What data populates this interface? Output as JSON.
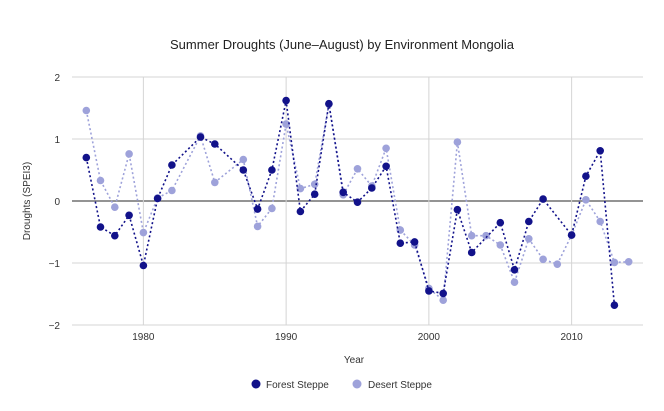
{
  "chart_data": {
    "type": "line",
    "title": "Summer Droughts (June–August) by Environment Mongolia",
    "xlabel": "Year",
    "ylabel": "Droughts (SPEI3)",
    "xlim": [
      1975,
      2015
    ],
    "ylim": [
      -2,
      2
    ],
    "x_ticks": [
      1980,
      1990,
      2000,
      2010
    ],
    "y_ticks": [
      -2,
      -1,
      0,
      1,
      2
    ],
    "y_tick_labels": [
      "−2",
      "−1",
      "0",
      "1",
      "2"
    ],
    "grid": true,
    "legend_position": "bottom-center",
    "series": [
      {
        "name": "Forest Steppe",
        "color": "#12128a",
        "points": [
          [
            1976,
            0.7
          ],
          [
            1977,
            -0.42
          ],
          [
            1978,
            -0.56
          ],
          [
            1979,
            -0.23
          ],
          [
            1980,
            -1.04
          ],
          [
            1981,
            0.04
          ],
          [
            1982,
            0.58
          ],
          [
            1984,
            1.03
          ],
          [
            1985,
            0.92
          ],
          [
            1987,
            0.5
          ],
          [
            1988,
            -0.13
          ],
          [
            1989,
            0.5
          ],
          [
            1990,
            1.62
          ],
          [
            1991,
            -0.17
          ],
          [
            1992,
            0.11
          ],
          [
            1993,
            1.57
          ],
          [
            1994,
            0.14
          ],
          [
            1995,
            -0.02
          ],
          [
            1996,
            0.21
          ],
          [
            1997,
            0.56
          ],
          [
            1998,
            -0.68
          ],
          [
            1999,
            -0.66
          ],
          [
            2000,
            -1.45
          ],
          [
            2001,
            -1.49
          ],
          [
            2002,
            -0.14
          ],
          [
            2003,
            -0.83
          ],
          [
            2005,
            -0.35
          ],
          [
            2006,
            -1.11
          ],
          [
            2007,
            -0.33
          ],
          [
            2008,
            0.03
          ],
          [
            2010,
            -0.55
          ],
          [
            2011,
            0.4
          ],
          [
            2012,
            0.81
          ],
          [
            2013,
            -1.68
          ]
        ]
      },
      {
        "name": "Desert Steppe",
        "color": "#9ea2da",
        "points": [
          [
            1976,
            1.46
          ],
          [
            1977,
            0.33
          ],
          [
            1978,
            -0.1
          ],
          [
            1979,
            0.76
          ],
          [
            1980,
            -0.51
          ],
          [
            1981,
            0.05
          ],
          [
            1982,
            0.17
          ],
          [
            1984,
            1.05
          ],
          [
            1985,
            0.3
          ],
          [
            1987,
            0.67
          ],
          [
            1988,
            -0.41
          ],
          [
            1989,
            -0.12
          ],
          [
            1990,
            1.24
          ],
          [
            1991,
            0.2
          ],
          [
            1992,
            0.27
          ],
          [
            1993,
            1.56
          ],
          [
            1994,
            0.1
          ],
          [
            1995,
            0.52
          ],
          [
            1996,
            0.24
          ],
          [
            1997,
            0.85
          ],
          [
            1998,
            -0.47
          ],
          [
            1999,
            -0.71
          ],
          [
            2000,
            -1.41
          ],
          [
            2001,
            -1.6
          ],
          [
            2002,
            0.95
          ],
          [
            2003,
            -0.56
          ],
          [
            2004,
            -0.56
          ],
          [
            2005,
            -0.71
          ],
          [
            2006,
            -1.31
          ],
          [
            2007,
            -0.61
          ],
          [
            2008,
            -0.94
          ],
          [
            2009,
            -1.02
          ],
          [
            2010,
            -0.55
          ],
          [
            2011,
            0.02
          ],
          [
            2012,
            -0.33
          ],
          [
            2013,
            -0.99
          ],
          [
            2014,
            -0.98
          ]
        ]
      }
    ]
  }
}
